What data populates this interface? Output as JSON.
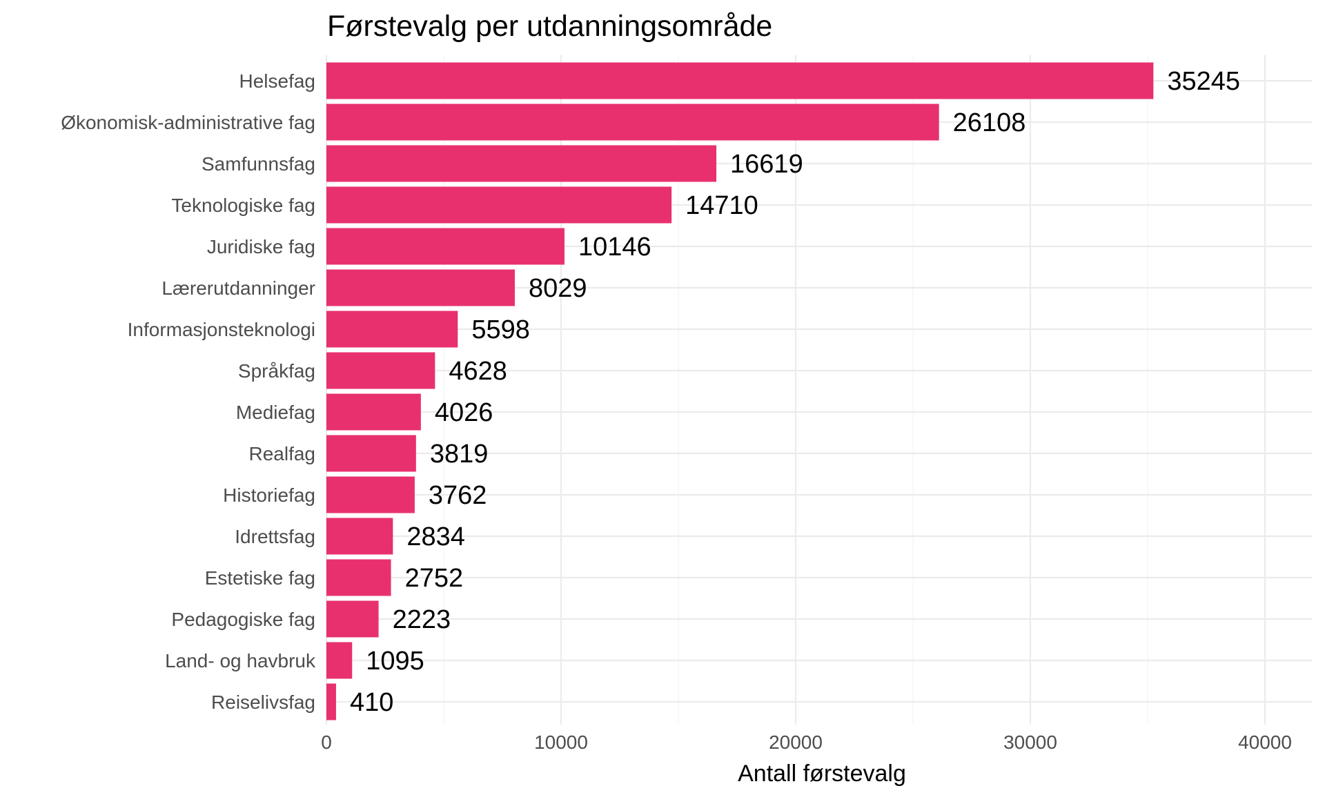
{
  "chart_data": {
    "type": "bar",
    "orientation": "horizontal",
    "title": "Førstevalg per utdanningsområde",
    "xlabel": "Antall førstevalg",
    "ylabel": "",
    "xlim": [
      0,
      42000
    ],
    "x_ticks": [
      0,
      10000,
      20000,
      30000,
      40000
    ],
    "x_tick_labels": [
      "0",
      "10000",
      "20000",
      "30000",
      "40000"
    ],
    "grid": true,
    "bar_color": "#e8306f",
    "categories": [
      "Helsefag",
      "Økonomisk-administrative fag",
      "Samfunnsfag",
      "Teknologiske fag",
      "Juridiske fag",
      "Lærerutdanninger",
      "Informasjonsteknologi",
      "Språkfag",
      "Mediefag",
      "Realfag",
      "Historiefag",
      "Idrettsfag",
      "Estetiske fag",
      "Pedagogiske fag",
      "Land- og havbruk",
      "Reiselivsfag"
    ],
    "values": [
      35245,
      26108,
      16619,
      14710,
      10146,
      8029,
      5598,
      4628,
      4026,
      3819,
      3762,
      2834,
      2752,
      2223,
      1095,
      410
    ],
    "data_labels": [
      "35245",
      "26108",
      "16619",
      "14710",
      "10146",
      "8029",
      "5598",
      "4628",
      "4026",
      "3819",
      "3762",
      "2834",
      "2752",
      "2223",
      "1095",
      "410"
    ]
  }
}
